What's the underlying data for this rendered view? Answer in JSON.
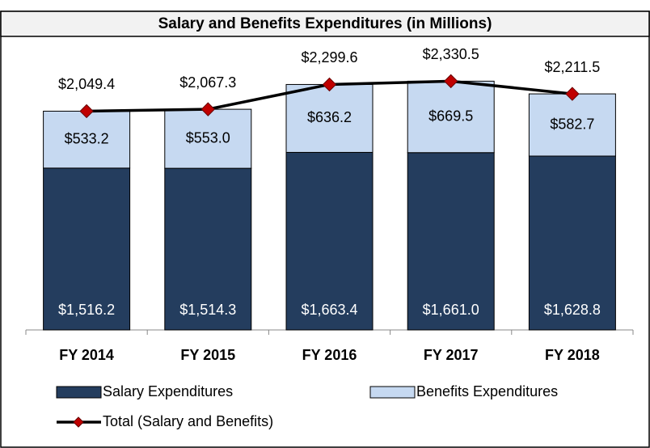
{
  "chart_data": {
    "type": "bar",
    "title": "Salary and Benefits Expenditures (in Millions)",
    "categories": [
      "FY 2014",
      "FY 2015",
      "FY 2016",
      "FY 2017",
      "FY 2018"
    ],
    "stacked": true,
    "ylim": [
      0,
      2500
    ],
    "legend": "bottom",
    "series": [
      {
        "name": "Salary Expenditures",
        "type": "bar",
        "color": "#243d5e",
        "values": [
          1516.2,
          1514.3,
          1663.4,
          1661.0,
          1628.8
        ],
        "value_labels": [
          "$1,516.2",
          "$1,514.3",
          "$1,663.4",
          "$1,661.0",
          "$1,628.8"
        ]
      },
      {
        "name": "Benefits Expenditures",
        "type": "bar",
        "color": "#c6d9f1",
        "values": [
          533.2,
          553.0,
          636.2,
          669.5,
          582.7
        ],
        "value_labels": [
          "$533.2",
          "$553.0",
          "$636.2",
          "$669.5",
          "$582.7"
        ]
      },
      {
        "name": "Total (Salary and Benefits)",
        "type": "line",
        "color": "#000000",
        "marker_color": "#c00000",
        "values": [
          2049.4,
          2067.3,
          2299.6,
          2330.5,
          2211.5
        ],
        "value_labels": [
          "$2,049.4",
          "$2,067.3",
          "$2,299.6",
          "$2,330.5",
          "$2,211.5"
        ]
      }
    ]
  }
}
